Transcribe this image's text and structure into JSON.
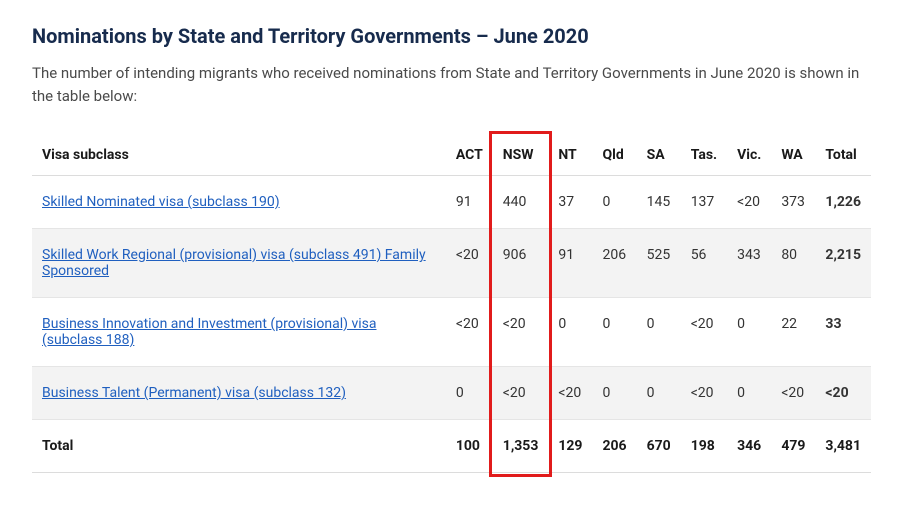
{
  "title": "Nominations by State and Territory Governments – June 2020",
  "intro": "The number of intending migrants who received nominations from State and Territory Governments in June 2020 is shown in the table below:",
  "table": {
    "columns": [
      "Visa subclass",
      "ACT",
      "NSW",
      "NT",
      "Qld",
      "SA",
      "Tas.",
      "Vic.",
      "WA",
      "Total"
    ],
    "rows": [
      {
        "label": "Skilled Nominated visa (subclass 190)",
        "link": true,
        "cells": [
          "91",
          "440",
          "37",
          "0",
          "145",
          "137",
          "<20",
          "373",
          "1,226"
        ]
      },
      {
        "label": "Skilled Work Regional (provisional) visa (subclass 491) Family Sponsored",
        "link": true,
        "cells": [
          "<20",
          "906",
          "91",
          "206",
          "525",
          "56",
          "343",
          "80",
          "2,215"
        ]
      },
      {
        "label": "Business Innovation and Investment (provisional) visa (subclass 188)",
        "link": true,
        "cells": [
          "<20",
          "<20",
          "0",
          "0",
          "0",
          "<20",
          "0",
          "22",
          "33"
        ]
      },
      {
        "label": "Business Talent (Permanent) visa (subclass 132)",
        "link": true,
        "cells": [
          "0",
          "<20",
          "<20",
          "0",
          "0",
          "<20",
          "0",
          "<20",
          "<20"
        ]
      }
    ],
    "footer": {
      "label": "Total",
      "cells": [
        "100",
        "1,353",
        "129",
        "206",
        "670",
        "198",
        "346",
        "479",
        "3,481"
      ]
    }
  },
  "highlight": {
    "column_index": 2,
    "color": "#e11b1b"
  }
}
